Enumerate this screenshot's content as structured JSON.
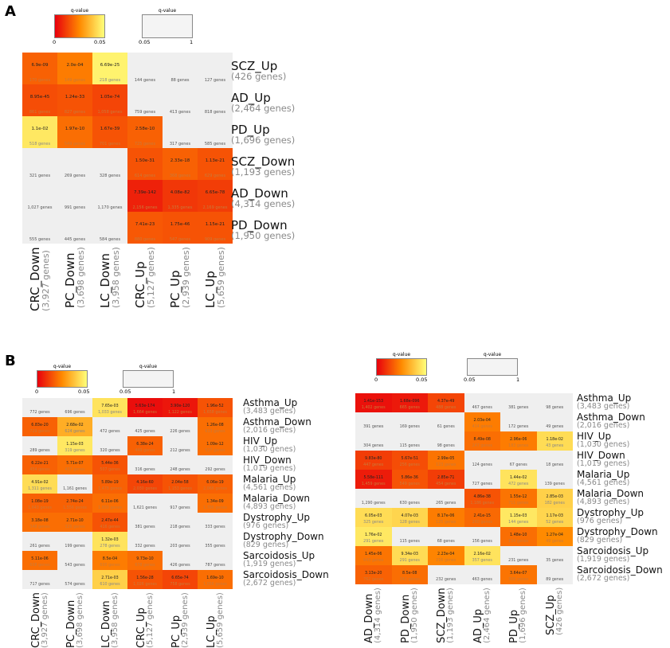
{
  "panels": {
    "a": "A",
    "b": "B"
  },
  "legend": {
    "title": "q-value",
    "sig_min": "0",
    "sig_max": "0.05",
    "ns_min": "0.05",
    "ns_max": "1"
  },
  "colors": {
    "grey": "#efefef",
    "low": "#e8000d",
    "mid": "#ff8a00",
    "high": "#ffff7a"
  },
  "heatmaps": [
    {
      "id": "A",
      "rows": [
        [
          "SCZ_Up",
          "(426 genes)"
        ],
        [
          "AD_Up",
          "(2,464 genes)"
        ],
        [
          "PD_Up",
          "(1,696 genes)"
        ],
        [
          "SCZ_Down",
          "(1,193 genes)"
        ],
        [
          "AD_Down",
          "(4,314 genes)"
        ],
        [
          "PD_Down",
          "(1,950 genes)"
        ]
      ],
      "cols": [
        [
          "CRC_Down",
          "(3,927 genes)"
        ],
        [
          "PC_Down",
          "(3,698 genes)"
        ],
        [
          "LC_Down",
          "(3,958 genes)"
        ],
        [
          "CRC_Up",
          "(5,127 genes)"
        ],
        [
          "PC_Up",
          "(2,939 genes)"
        ],
        [
          "LC_Up",
          "(5,659 genes)"
        ]
      ],
      "cells": [
        [
          [
            "6.9e-09",
            "170 genes",
            0.35
          ],
          [
            "2.0e-04",
            "149 genes",
            0.45
          ],
          [
            "6.69e-25",
            "218 genes",
            0.95
          ],
          [
            "",
            "144 genes",
            null
          ],
          [
            "",
            "88 genes",
            null
          ],
          [
            "",
            "127 genes",
            null
          ]
        ],
        [
          [
            "8.95e-45",
            "861 genes",
            0.28
          ],
          [
            "1.24e-33",
            "827 genes",
            0.3
          ],
          [
            "1.05e-74",
            "1,058 genes",
            0.25
          ],
          [
            "",
            "759 genes",
            null
          ],
          [
            "",
            "413 genes",
            null
          ],
          [
            "",
            "818 genes",
            null
          ]
        ],
        [
          [
            "1.1e-02",
            "518 genes",
            0.9
          ],
          [
            "1.97e-10",
            "549 genes",
            0.4
          ],
          [
            "1.67e-39",
            "701 genes",
            0.3
          ],
          [
            "2.58e-10",
            "725 genes",
            0.35
          ],
          [
            "",
            "317 genes",
            null
          ],
          [
            "",
            "585 genes",
            null
          ]
        ],
        [
          [
            "",
            "321 genes",
            null
          ],
          [
            "",
            "269 genes",
            null
          ],
          [
            "",
            "328 genes",
            null
          ],
          [
            "1.50e-31",
            "614 genes",
            0.3
          ],
          [
            "2.33e-18",
            "368 genes",
            0.35
          ],
          [
            "1.13e-21",
            "629 genes",
            0.3
          ]
        ],
        [
          [
            "",
            "1,027 genes",
            null
          ],
          [
            "",
            "991 genes",
            null
          ],
          [
            "",
            "1,170 genes",
            null
          ],
          [
            "7.39e-142",
            "2,156 genes",
            0.12
          ],
          [
            "4.08e-82",
            "1,335 genes",
            0.2
          ],
          [
            "6.65e-78",
            "2,169 genes",
            0.22
          ]
        ],
        [
          [
            "",
            "555 genes",
            null
          ],
          [
            "",
            "445 genes",
            null
          ],
          [
            "",
            "584 genes",
            null
          ],
          [
            "7.41e-23",
            "880 genes",
            0.32
          ],
          [
            "1.75e-46",
            "547 genes",
            0.3
          ],
          [
            "1.15e-21",
            "909 genes",
            0.3
          ]
        ]
      ]
    },
    {
      "id": "B1",
      "rows": [
        [
          "Asthma_Up",
          "(3,483 genes)"
        ],
        [
          "Asthma_Down",
          "(2,016 genes)"
        ],
        [
          "HIV_Up",
          "(1,030 genes)"
        ],
        [
          "HIV_Down",
          "(1,019 genes)"
        ],
        [
          "Malaria_Up",
          "(4,561 genes)"
        ],
        [
          "Malaria_Down",
          "(4,893 genes)"
        ],
        [
          "Dystrophy_Up",
          "(976 genes)"
        ],
        [
          "Dystrophy_Down",
          "(829 genes)"
        ],
        [
          "Sarcoidosis_Up",
          "(1,919 genes)"
        ],
        [
          "Sarcoidosis_Down",
          "(2,672 genes)"
        ]
      ],
      "cols": [
        [
          "CRC_Down",
          "(3,927 genes)"
        ],
        [
          "PC_Down",
          "(3,698 genes)"
        ],
        [
          "LC_Down",
          "(3,958 genes)"
        ],
        [
          "CRC_Up",
          "(5,127 genes)"
        ],
        [
          "PC_Up",
          "(2,939 genes)"
        ],
        [
          "LC_Up",
          "(5,659 genes)"
        ]
      ],
      "cells": [
        [
          [
            "",
            "772 genes",
            null
          ],
          [
            "",
            "696 genes",
            null
          ],
          [
            "7.65e-03",
            "1,033 genes",
            0.88
          ],
          [
            "5.63e-174",
            "1,664 genes",
            0.05
          ],
          [
            "3.90e-120",
            "1,122 genes",
            0.08
          ],
          [
            "1.96e-52",
            "1,658 genes",
            0.3
          ]
        ],
        [
          [
            "6.83e-20",
            "729 genes",
            0.35
          ],
          [
            "2.68e-02",
            "624 genes",
            0.65
          ],
          [
            "",
            "472 genes",
            null
          ],
          [
            "",
            "425 genes",
            null
          ],
          [
            "",
            "226 genes",
            null
          ],
          [
            "1.26e-08",
            "613 genes",
            0.4
          ]
        ],
        [
          [
            "",
            "289 genes",
            null
          ],
          [
            "1.15e-03",
            "319 genes",
            0.9
          ],
          [
            "",
            "320 genes",
            null
          ],
          [
            "6.38e-24",
            "449 genes",
            0.35
          ],
          [
            "",
            "212 genes",
            null
          ],
          [
            "1.09e-12",
            "527 genes",
            0.4
          ]
        ],
        [
          [
            "6.22e-21",
            "454 genes",
            0.35
          ],
          [
            "5.71e-07",
            "437 genes",
            0.4
          ],
          [
            "5.44e-36",
            "507 genes",
            0.3
          ],
          [
            "",
            "316 genes",
            null
          ],
          [
            "",
            "248 genes",
            null
          ],
          [
            "",
            "292 genes",
            null
          ]
        ],
        [
          [
            "4.91e-02",
            "1,311 genes",
            0.85
          ],
          [
            "",
            "1,161 genes",
            null
          ],
          [
            "5.89e-19",
            "1,478 genes",
            0.35
          ],
          [
            "4.16e-60",
            "2,030 genes",
            0.25
          ],
          [
            "2.04e-58",
            "1,153 genes",
            0.3
          ],
          [
            "6.06e-19",
            "2,066 genes",
            0.35
          ]
        ],
        [
          [
            "1.08e-19",
            "1,643 genes",
            0.35
          ],
          [
            "2.74e-24",
            "1,556 genes",
            0.35
          ],
          [
            "6.11e-06",
            "1,650 genes",
            0.4
          ],
          [
            "",
            "1,621 genes",
            null
          ],
          [
            "",
            "917 genes",
            null
          ],
          [
            "1.34e-09",
            "1,786 genes",
            0.4
          ]
        ],
        [
          [
            "3.18e-08",
            "348 genes",
            0.4
          ],
          [
            "2.71e-10",
            "326 genes",
            0.4
          ],
          [
            "2.47e-44",
            "416 genes",
            0.3
          ],
          [
            "",
            "381 genes",
            null
          ],
          [
            "",
            "218 genes",
            null
          ],
          [
            "",
            "333 genes",
            null
          ]
        ],
        [
          [
            "",
            "261 genes",
            null
          ],
          [
            "",
            "199 genes",
            null
          ],
          [
            "1.32e-03",
            "278 genes",
            0.88
          ],
          [
            "",
            "332 genes",
            null
          ],
          [
            "",
            "203 genes",
            null
          ],
          [
            "",
            "355 genes",
            null
          ]
        ],
        [
          [
            "5.11e-06",
            "608 genes",
            0.4
          ],
          [
            "",
            "543 genes",
            null
          ],
          [
            "8.5e-04",
            "600 genes",
            0.45
          ],
          [
            "9.73e-10",
            "678 genes",
            0.4
          ],
          [
            "",
            "426 genes",
            null
          ],
          [
            "",
            "787 genes",
            null
          ]
        ],
        [
          [
            "",
            "717 genes",
            null
          ],
          [
            "",
            "574 genes",
            null
          ],
          [
            "2.71e-03",
            "610 genes",
            0.8
          ],
          [
            "1.56e-28",
            "1,026 genes",
            0.3
          ],
          [
            "6.65e-74",
            "758 genes",
            0.25
          ],
          [
            "1.69e-10",
            "1,056 genes",
            0.4
          ]
        ]
      ]
    },
    {
      "id": "B2",
      "rows": [
        [
          "Asthma_Up",
          "(3,483 genes)"
        ],
        [
          "Asthma_Down",
          "(2,016 genes)"
        ],
        [
          "HIV_Up",
          "(1,030 genes)"
        ],
        [
          "HIV_Down",
          "(1,019 genes)"
        ],
        [
          "Malaria_Up",
          "(4,561 genes)"
        ],
        [
          "Malaria_Down",
          "(4,893 genes)"
        ],
        [
          "Dystrophy_Up",
          "(976 genes)"
        ],
        [
          "Dystrophy_Down",
          "(829 genes)"
        ],
        [
          "Sarcoidosis_Up",
          "(1,919 genes)"
        ],
        [
          "Sarcoidosis_Down",
          "(2,672 genes)"
        ]
      ],
      "cols": [
        [
          "AD_Down",
          "(4,314 genes)"
        ],
        [
          "PD_Down",
          "(1,950 genes)"
        ],
        [
          "SCZ_Down",
          "(1,193 genes)"
        ],
        [
          "AD_Up",
          "(2,464 genes)"
        ],
        [
          "PD_Up",
          "(1,696 genes)"
        ],
        [
          "SCZ_Up",
          "(426 genes)"
        ]
      ],
      "cells": [
        [
          [
            "1.41e-153",
            "1,402 genes",
            0.06
          ],
          [
            "1.68e-096",
            "665 genes",
            0.09
          ],
          [
            "4.37e-49",
            "488 genes",
            0.25
          ],
          [
            "",
            "467 genes",
            null
          ],
          [
            "",
            "381 genes",
            null
          ],
          [
            "",
            "98 genes",
            null
          ]
        ],
        [
          [
            "",
            "391 genes",
            null
          ],
          [
            "",
            "169 genes",
            null
          ],
          [
            "",
            "61 genes",
            null
          ],
          [
            "2.03e-04",
            "414 genes",
            0.45
          ],
          [
            "",
            "172 genes",
            null
          ],
          [
            "",
            "49 genes",
            null
          ]
        ],
        [
          [
            "",
            "304 genes",
            null
          ],
          [
            "",
            "115 genes",
            null
          ],
          [
            "",
            "98 genes",
            null
          ],
          [
            "8.49e-08",
            "247 genes",
            0.4
          ],
          [
            "2.96e-06",
            "183 genes",
            0.45
          ],
          [
            "1.18e-02",
            "43 genes",
            0.85
          ]
        ],
        [
          [
            "9.83e-80",
            "447 genes",
            0.22
          ],
          [
            "5.67e-51",
            "256 genes",
            0.28
          ],
          [
            "2.99e-05",
            "123 genes",
            0.42
          ],
          [
            "",
            "124 genes",
            null
          ],
          [
            "",
            "67 genes",
            null
          ],
          [
            "",
            "18 genes",
            null
          ]
        ],
        [
          [
            "5.58e-111",
            "1,459 genes",
            0.1
          ],
          [
            "5.86e-36",
            "549 genes",
            0.3
          ],
          [
            "2.85e-71",
            "454 genes",
            0.22
          ],
          [
            "",
            "727 genes",
            null
          ],
          [
            "1.44e-02",
            "472 genes",
            0.88
          ],
          [
            "",
            "139 genes",
            null
          ]
        ],
        [
          [
            "",
            "1,290 genes",
            null
          ],
          [
            "",
            "630 genes",
            null
          ],
          [
            "",
            "265 genes",
            null
          ],
          [
            "4.86e-38",
            "1,186 genes",
            0.3
          ],
          [
            "1.55e-12",
            "711 genes",
            0.42
          ],
          [
            "2.85e-03",
            "182 genes",
            0.8
          ]
        ],
        [
          [
            "6.05e-03",
            "325 genes",
            0.85
          ],
          [
            "4.07e-03",
            "128 genes",
            0.82
          ],
          [
            "8.17e-06",
            "125 genes",
            0.45
          ],
          [
            "2.41e-15",
            "260 genes",
            0.38
          ],
          [
            "1.15e-03",
            "144 genes",
            0.9
          ],
          [
            "1.17e-03",
            "52 genes",
            0.82
          ]
        ],
        [
          [
            "1.76e-02",
            "291 genes",
            0.9
          ],
          [
            "",
            "115 genes",
            null
          ],
          [
            "",
            "68 genes",
            null
          ],
          [
            "",
            "156 genes",
            null
          ],
          [
            "1.48e-10",
            "154 genes",
            0.4
          ],
          [
            "1.27e-04",
            "49 genes",
            0.5
          ]
        ],
        [
          [
            "1.45e-06",
            "643 genes",
            0.42
          ],
          [
            "9.34e-03",
            "291 genes",
            0.85
          ],
          [
            "2.23e-04",
            "216 genes",
            0.48
          ],
          [
            "2.16e-02",
            "357 genes",
            0.88
          ],
          [
            "",
            "231 genes",
            null
          ],
          [
            "",
            "35 genes",
            null
          ]
        ],
        [
          [
            "3.13e-20",
            "762 genes",
            0.35
          ],
          [
            "8.5e-08",
            "342 genes",
            0.4
          ],
          [
            "",
            "232 genes",
            null
          ],
          [
            "",
            "463 genes",
            null
          ],
          [
            "3.64e-07",
            "308 genes",
            0.42
          ],
          [
            "",
            "89 genes",
            null
          ]
        ]
      ]
    }
  ]
}
